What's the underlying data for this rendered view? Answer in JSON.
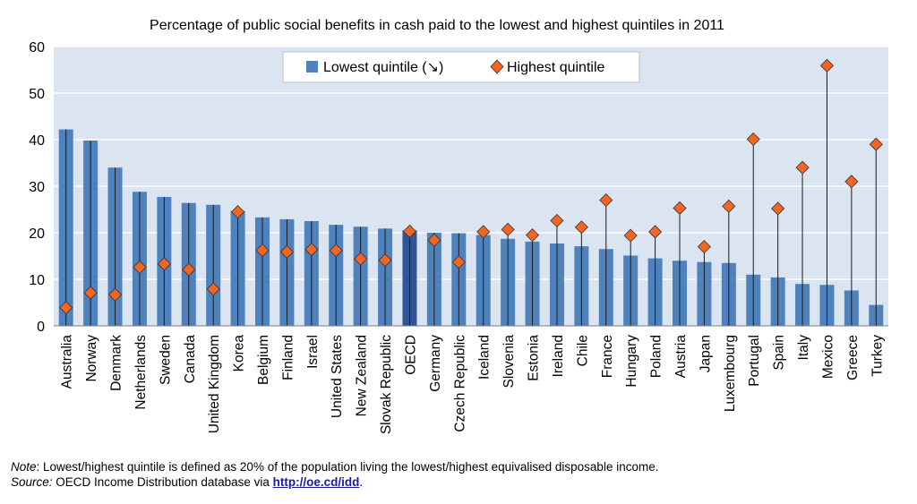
{
  "chart_data": {
    "type": "bar",
    "title": "Percentage of public social benefits in cash paid to the lowest and highest quintiles in 2011",
    "xlabel": "",
    "ylabel": "",
    "ylim": [
      0,
      60
    ],
    "yticks": [
      0,
      10,
      20,
      30,
      40,
      50,
      60
    ],
    "grid": true,
    "legend_position": "top-center",
    "categories": [
      "Australia",
      "Norway",
      "Denmark",
      "Netherlands",
      "Sweden",
      "Canada",
      "United Kingdom",
      "Korea",
      "Belgium",
      "Finland",
      "Israel",
      "United States",
      "New Zealand",
      "Slovak Republic",
      "OECD",
      "Germany",
      "Czech Republic",
      "Iceland",
      "Slovenia",
      "Estonia",
      "Ireland",
      "Chile",
      "France",
      "Hungary",
      "Poland",
      "Austria",
      "Japan",
      "Luxembourg",
      "Portugal",
      "Spain",
      "Italy",
      "Mexico",
      "Greece",
      "Turkey"
    ],
    "highlight_category": "OECD",
    "series": [
      {
        "name": "Lowest quintile (↘)",
        "type": "bar",
        "color": "#4f81bd",
        "highlight_color": "#2f5597",
        "values": [
          42.2,
          39.8,
          34.0,
          28.8,
          27.7,
          26.4,
          26.0,
          24.7,
          23.3,
          22.9,
          22.5,
          21.7,
          21.3,
          20.9,
          20.5,
          20.0,
          19.9,
          19.5,
          18.7,
          18.1,
          17.7,
          17.1,
          16.5,
          15.1,
          14.5,
          14.0,
          13.7,
          13.5,
          11.0,
          10.4,
          9.0,
          8.8,
          7.6,
          4.5
        ]
      },
      {
        "name": "Highest quintile",
        "type": "scatter",
        "marker": "diamond",
        "color": "#f26522",
        "values": [
          3.9,
          7.1,
          6.7,
          12.6,
          13.3,
          12.1,
          7.9,
          24.5,
          16.2,
          15.9,
          16.4,
          16.2,
          14.4,
          14.1,
          20.3,
          18.4,
          13.7,
          20.2,
          20.7,
          19.5,
          22.6,
          21.2,
          27.0,
          19.4,
          20.2,
          25.3,
          17.0,
          25.7,
          40.1,
          25.2,
          34.0,
          55.9,
          31.0,
          39.0
        ]
      }
    ]
  },
  "notes": {
    "note_label": "Note",
    "note_text": ": Lowest/highest quintile is defined as 20% of the population living the lowest/highest equivalised disposable income.",
    "source_label": "Source:",
    "source_text": " OECD Income Distribution database via ",
    "source_link": "http://oe.cd/idd",
    "source_end": "."
  }
}
